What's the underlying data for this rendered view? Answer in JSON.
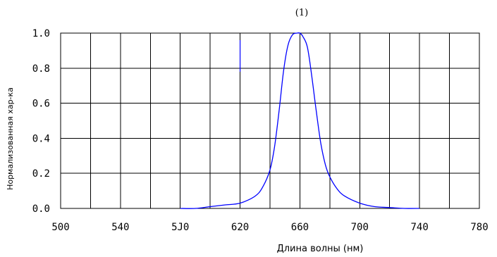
{
  "chart_data": {
    "type": "line",
    "title": "(1)",
    "xlabel": "Длина волны (нм)",
    "ylabel": "Нормализованная хар-ка",
    "xlim": [
      500,
      780
    ],
    "ylim": [
      0,
      1.0
    ],
    "x_tick_labels": [
      "500",
      "540",
      "5J0",
      "620",
      "660",
      "700",
      "740",
      "780"
    ],
    "y_tick_labels": [
      "0.0",
      "0.2",
      "0.4",
      "0.6",
      "0.8",
      "1.0"
    ],
    "grid": true,
    "series": [
      {
        "color": "#0000ff",
        "x": [
          580,
          590,
          600,
          610,
          620,
          630,
          635,
          640,
          643,
          646,
          649,
          652,
          655,
          658,
          660,
          662,
          665,
          668,
          671,
          674,
          677,
          680,
          685,
          690,
          700,
          710,
          720,
          730,
          740
        ],
        "y": [
          0.0,
          0.0,
          0.01,
          0.02,
          0.03,
          0.07,
          0.12,
          0.22,
          0.35,
          0.55,
          0.78,
          0.93,
          0.99,
          1.0,
          1.0,
          0.98,
          0.92,
          0.75,
          0.55,
          0.37,
          0.25,
          0.18,
          0.11,
          0.07,
          0.03,
          0.01,
          0.005,
          0.0,
          0.0
        ]
      }
    ],
    "annotations": [
      {
        "type": "vertical-line",
        "x": 620,
        "y_from": 0.78,
        "y_to": 0.96,
        "color": "#0000ff"
      }
    ]
  }
}
